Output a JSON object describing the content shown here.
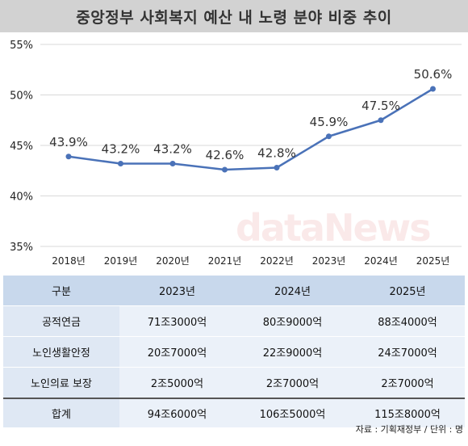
{
  "title": "중앙정부 사회복지 예산 내 노령 분야 비중 추이",
  "chart_data": {
    "type": "line",
    "categories": [
      "2018년",
      "2019년",
      "2020년",
      "2021년",
      "2022년",
      "2023년",
      "2024년",
      "2025년"
    ],
    "values": [
      43.9,
      43.2,
      43.2,
      42.6,
      42.8,
      45.9,
      47.5,
      50.6
    ],
    "data_labels": [
      "43.9%",
      "43.2%",
      "43.2%",
      "42.6%",
      "42.8%",
      "45.9%",
      "47.5%",
      "50.6%"
    ],
    "y_ticks": [
      "35%",
      "40%",
      "45%",
      "50%",
      "55%"
    ],
    "y_tick_values": [
      35,
      40,
      45,
      50,
      55
    ],
    "ylim": [
      35,
      55
    ],
    "grid": true,
    "line_color": "#4a72b8"
  },
  "watermark": "dataNews",
  "table": {
    "headers": [
      "구분",
      "2023년",
      "2024년",
      "2025년"
    ],
    "rows": [
      [
        "공적연금",
        "71조3000억",
        "80조9000억",
        "88조4000억"
      ],
      [
        "노인생활안정",
        "20조7000억",
        "22조9000억",
        "24조7000억"
      ],
      [
        "노인의료 보장",
        "2조5000억",
        "2조7000억",
        "2조7000억"
      ]
    ],
    "total": [
      "합계",
      "94조6000억",
      "106조5000억",
      "115조8000억"
    ]
  },
  "source": "자료 : 기획재정부 / 단위 : 명"
}
